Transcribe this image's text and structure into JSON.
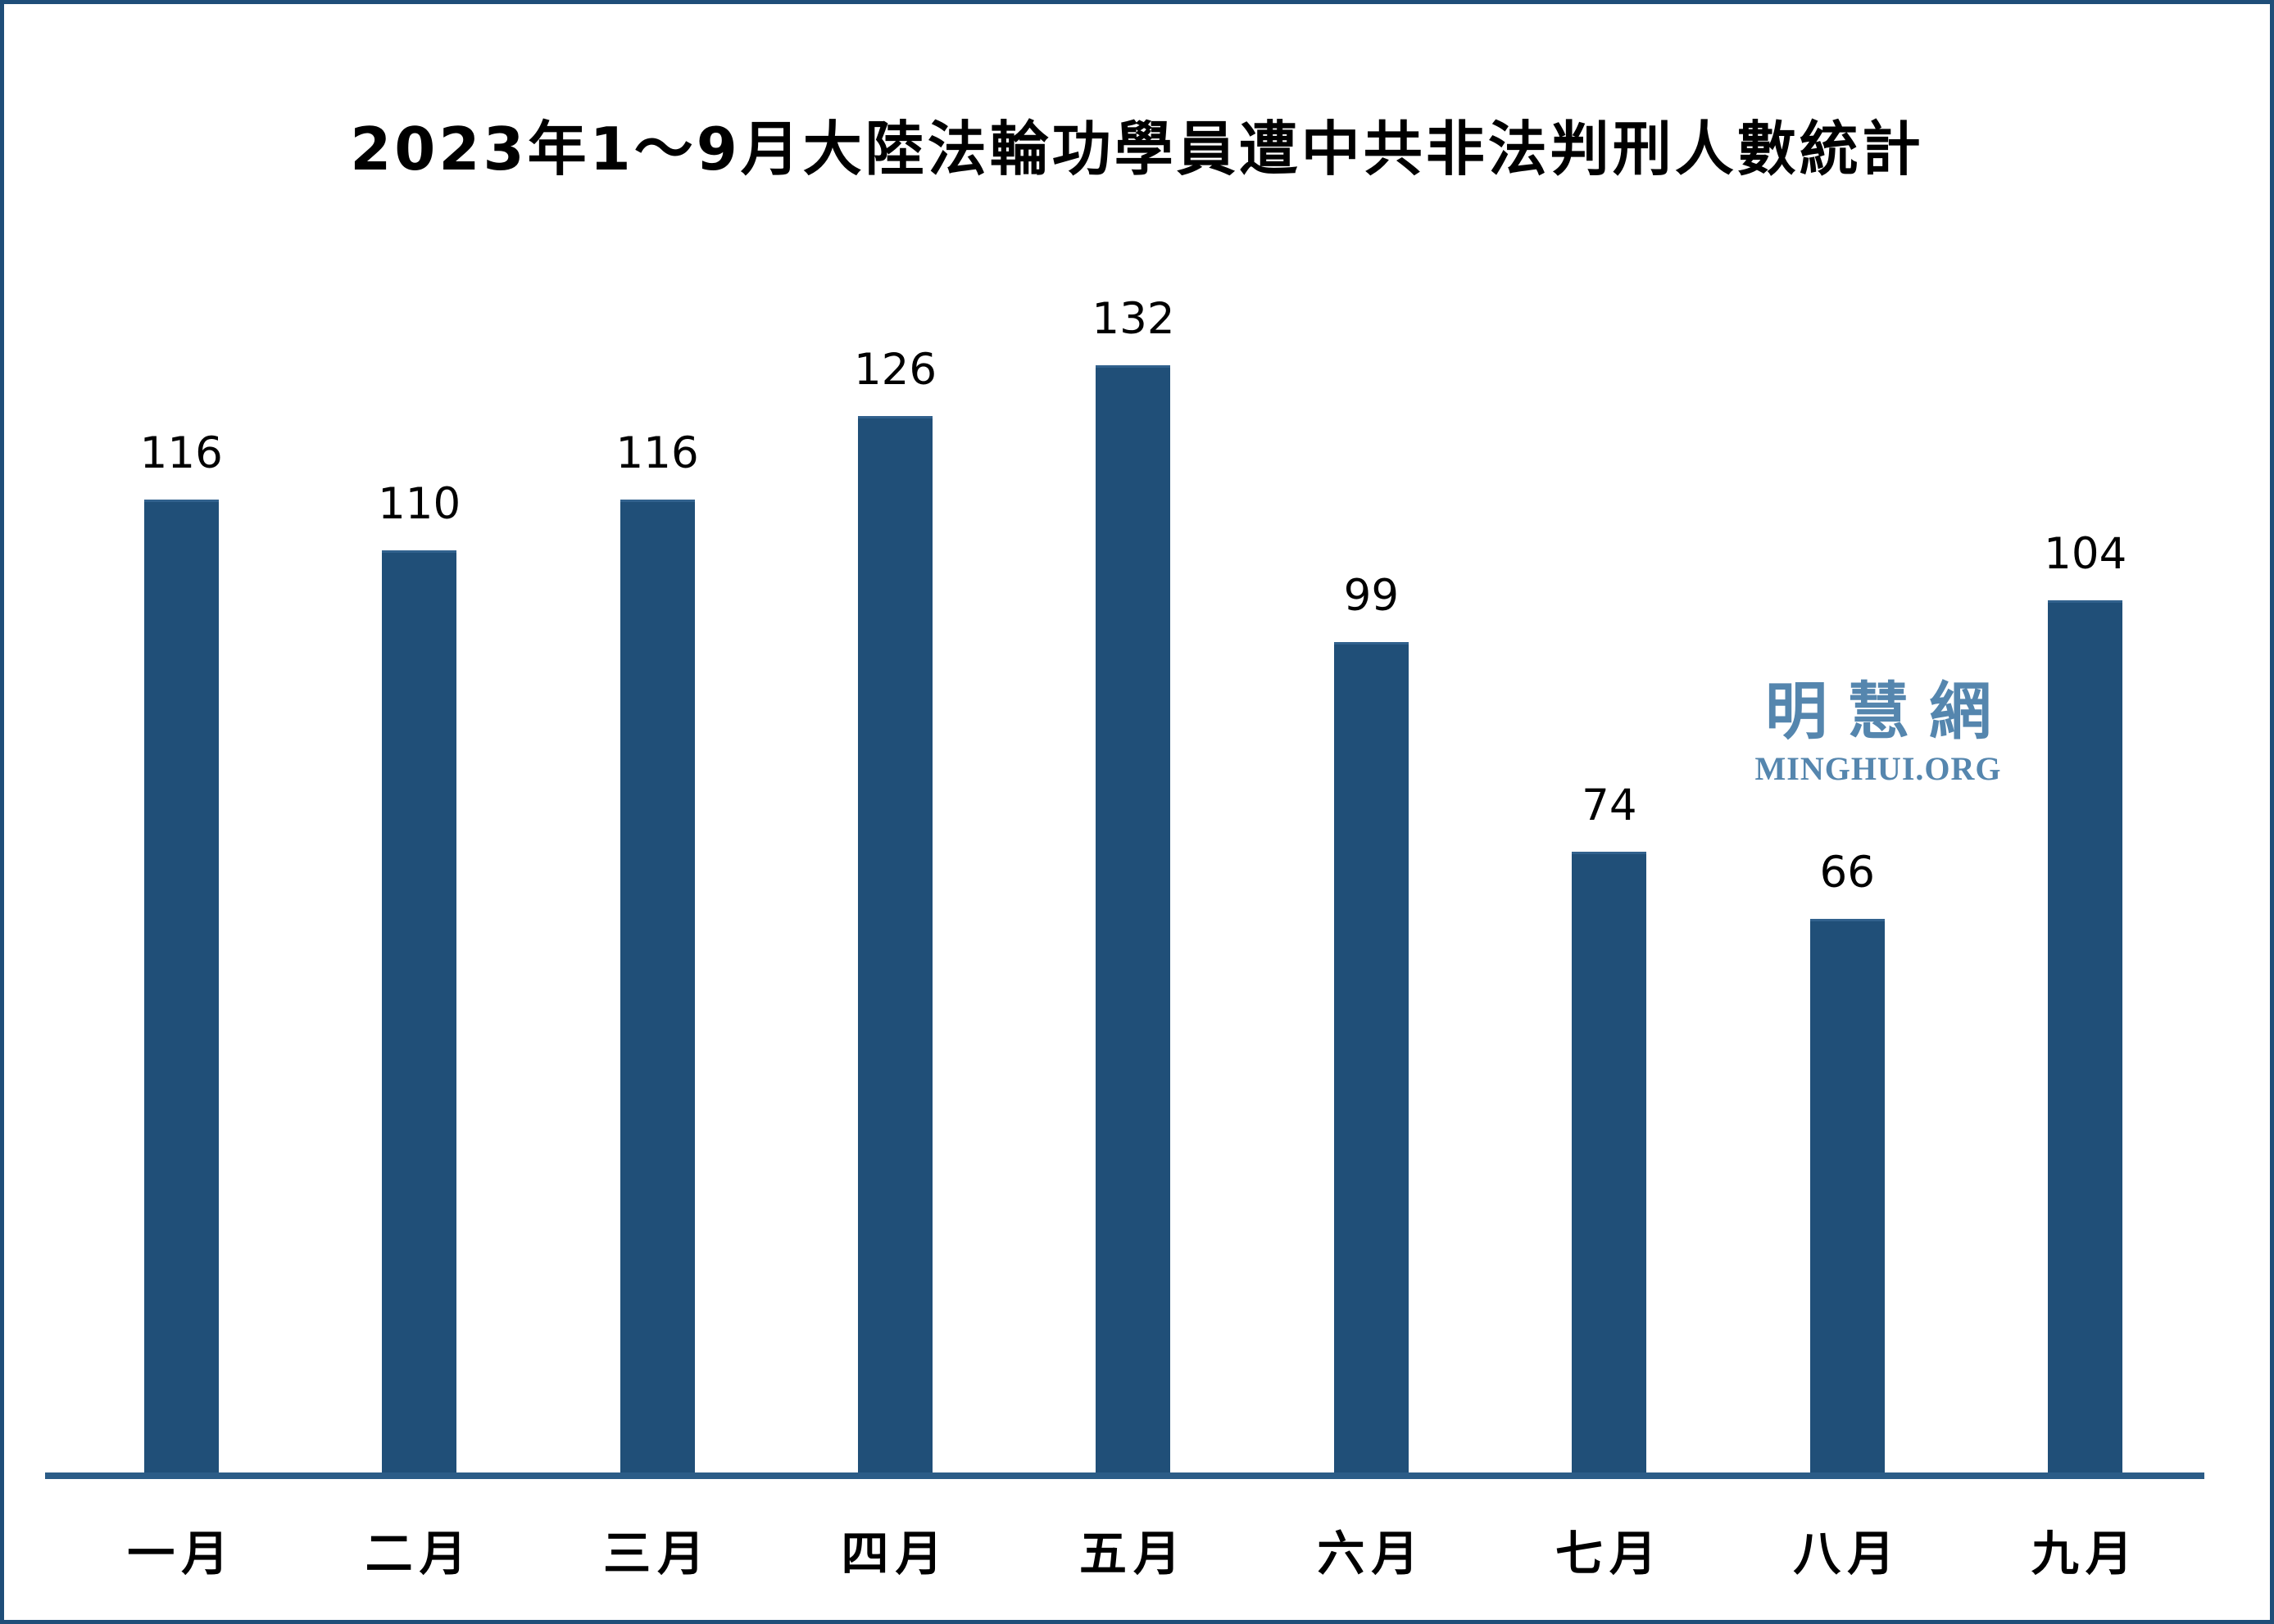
{
  "title": "2023年1～9月大陸法輪功學員遭中共非法判刑人數統計",
  "watermark": {
    "cjk": "明慧網",
    "latin": "MINGHUI.ORG"
  },
  "colors": {
    "background": "#FFFFFF",
    "frame_border": "#1F4E79",
    "bar_fill": "#204F78",
    "bar_top_edge": "#31618D",
    "axis_line": "#2B5C87",
    "watermark": "#5586AE",
    "text": "#000000"
  },
  "chart_data": {
    "type": "bar",
    "title": "2023年1～9月大陸法輪功學員遭中共非法判刑人數統計",
    "categories": [
      "一月",
      "二月",
      "三月",
      "四月",
      "五月",
      "六月",
      "七月",
      "八月",
      "九月"
    ],
    "values": [
      116,
      110,
      116,
      126,
      132,
      99,
      74,
      66,
      104
    ],
    "xlabel": "",
    "ylabel": "",
    "data_labels": true,
    "grid": false,
    "legend": false,
    "y_axis_visible": false,
    "x_axis_line_visible": true
  }
}
